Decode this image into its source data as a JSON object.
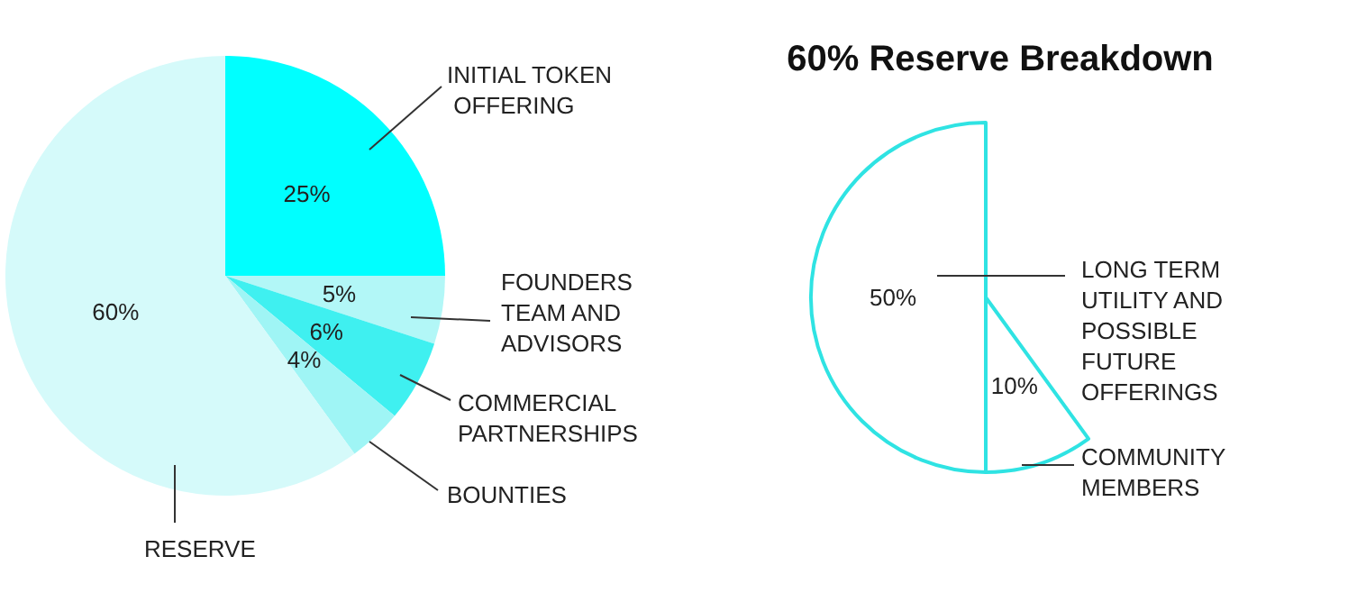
{
  "chart_data": [
    {
      "type": "pie",
      "categories": [
        "INITIAL TOKEN OFFERING",
        "FOUNDERS TEAM AND ADVISORS",
        "COMMERCIAL PARTNERSHIPS",
        "BOUNTIES",
        "RESERVE"
      ],
      "values": [
        25,
        5,
        6,
        4,
        60
      ],
      "colors": [
        "#00ffff",
        "#b2f7f7",
        "#3ff0f0",
        "#9ff5f5",
        "#d5fafa"
      ],
      "value_labels": [
        "25%",
        "5%",
        "6%",
        "4%",
        "60%"
      ]
    },
    {
      "type": "pie",
      "title": "60% Reserve Breakdown",
      "categories": [
        "LONG TERM UTILITY AND POSSIBLE FUTURE OFFERINGS",
        "COMMUNITY MEMBERS"
      ],
      "values": [
        50,
        10
      ],
      "colors": [
        "#ffffff",
        "#ffffff"
      ],
      "value_labels": [
        "50%",
        "10%"
      ]
    }
  ]
}
